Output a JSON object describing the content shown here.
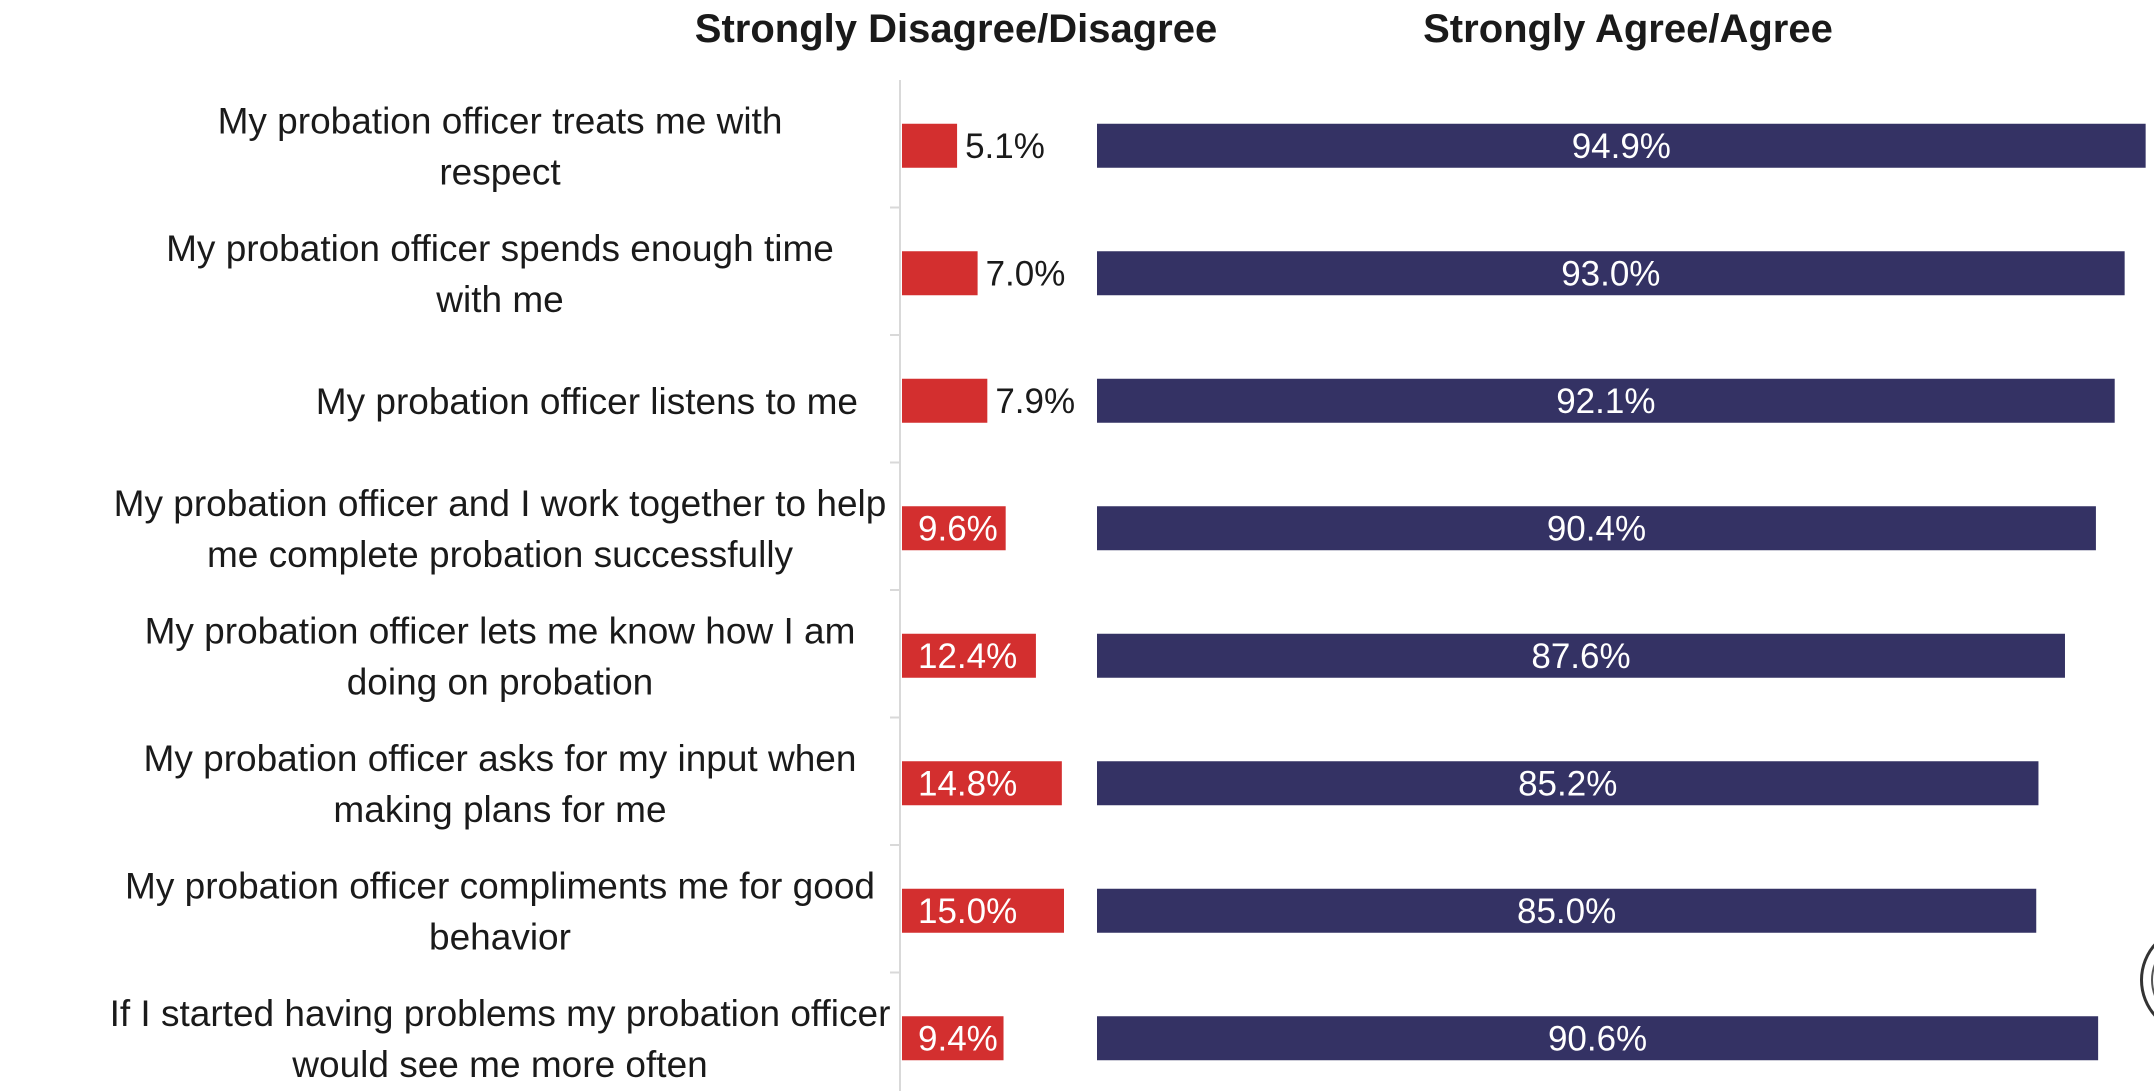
{
  "chart_data": {
    "type": "bar",
    "orientation": "horizontal",
    "layout": "diverging",
    "categories": [
      "My probation officer treats me with respect",
      "My probation officer spends enough time with me",
      "My probation officer listens to me",
      "My probation officer and I work together to help me complete probation successfully",
      "My probation officer lets me know how I am doing on probation",
      "My probation officer asks for my input when making plans for me",
      "My probation officer compliments me for good behavior",
      "If I started having problems my probation officer would see me more often"
    ],
    "category_lines": [
      [
        "My probation officer treats me with",
        "respect"
      ],
      [
        "My probation officer spends enough time",
        "with me"
      ],
      [
        "My probation officer listens to me"
      ],
      [
        "My probation officer and I work together to help",
        "me complete probation successfully"
      ],
      [
        "My probation officer lets me know how I am",
        "doing on probation"
      ],
      [
        "My probation officer asks for my input when",
        "making plans for me"
      ],
      [
        "My probation officer compliments me for good",
        "behavior"
      ],
      [
        "If I started having problems my probation officer",
        "would see me more often"
      ]
    ],
    "series": [
      {
        "name": "Strongly Disagree/Disagree",
        "color": "#d32f2f",
        "values": [
          5.1,
          7.0,
          7.9,
          9.6,
          12.4,
          14.8,
          15.0,
          9.4
        ],
        "labels": [
          "5.1%",
          "7.0%",
          "7.9%",
          "9.6%",
          "12.4%",
          "14.8%",
          "15.0%",
          "9.4%"
        ]
      },
      {
        "name": "Strongly Agree/Agree",
        "color": "#343264",
        "values": [
          94.9,
          93.0,
          92.1,
          90.4,
          87.6,
          85.2,
          85.0,
          90.6
        ],
        "labels": [
          "94.9%",
          "93.0%",
          "92.1%",
          "90.4%",
          "87.6%",
          "85.2%",
          "85.0%",
          "90.6%"
        ]
      }
    ],
    "unit": "%",
    "grid": false,
    "legend": "none"
  }
}
